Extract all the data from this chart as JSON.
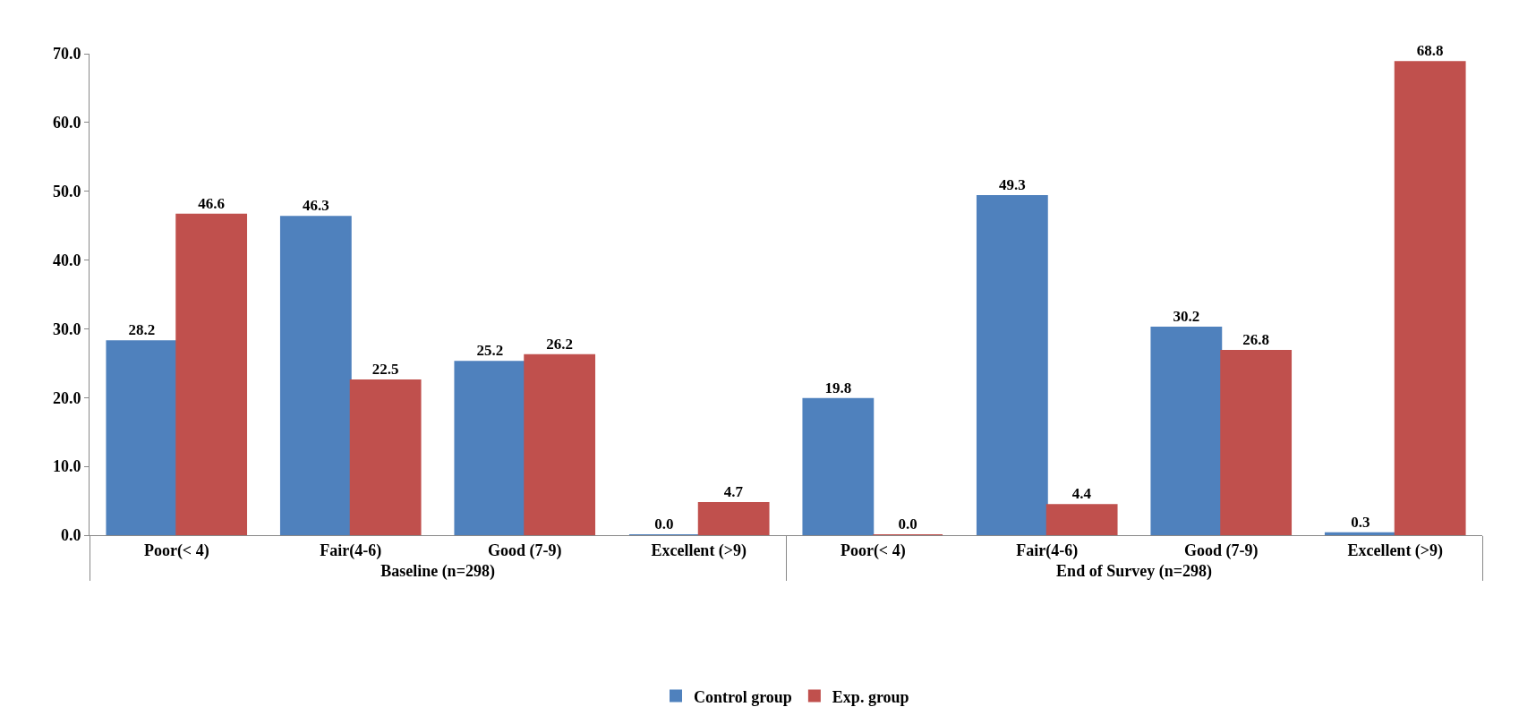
{
  "chart_data": {
    "type": "bar",
    "categories": [
      "Poor(< 4)",
      "Fair(4-6)",
      "Good (7-9)",
      "Excellent (>9)",
      "Poor(< 4)",
      "Fair(4-6)",
      "Good (7-9)",
      "Excellent (>9)"
    ],
    "annotations": [
      "Baseline (n=298)",
      "End of Survey (n=298)"
    ],
    "series": [
      {
        "name": "Control group",
        "color": "#4f81bd",
        "values": [
          28.2,
          46.3,
          25.2,
          0.0,
          19.8,
          49.3,
          30.2,
          0.3
        ],
        "value_labels": [
          "28.2",
          "46.3",
          "25.2",
          "0.0",
          "19.8",
          "49.3",
          "30.2",
          "0.3"
        ]
      },
      {
        "name": "Exp. group",
        "color": "#c0504d",
        "values": [
          46.6,
          22.5,
          26.2,
          4.7,
          0.0,
          4.4,
          26.8,
          68.8
        ],
        "value_labels": [
          "46.6",
          "22.5",
          "26.2",
          "4.7",
          "0.0",
          "4.4",
          "26.8",
          "68.8"
        ]
      }
    ],
    "ylim": [
      0,
      70
    ],
    "yticks": [
      {
        "value": 0,
        "label": "0.0"
      },
      {
        "value": 10,
        "label": "10.0"
      },
      {
        "value": 20,
        "label": "20.0"
      },
      {
        "value": 30,
        "label": "30.0"
      },
      {
        "value": 40,
        "label": "40.0"
      },
      {
        "value": 50,
        "label": "50.0"
      },
      {
        "value": 60,
        "label": "60.0"
      },
      {
        "value": 70,
        "label": "70.0"
      }
    ],
    "legend": "bottom"
  }
}
